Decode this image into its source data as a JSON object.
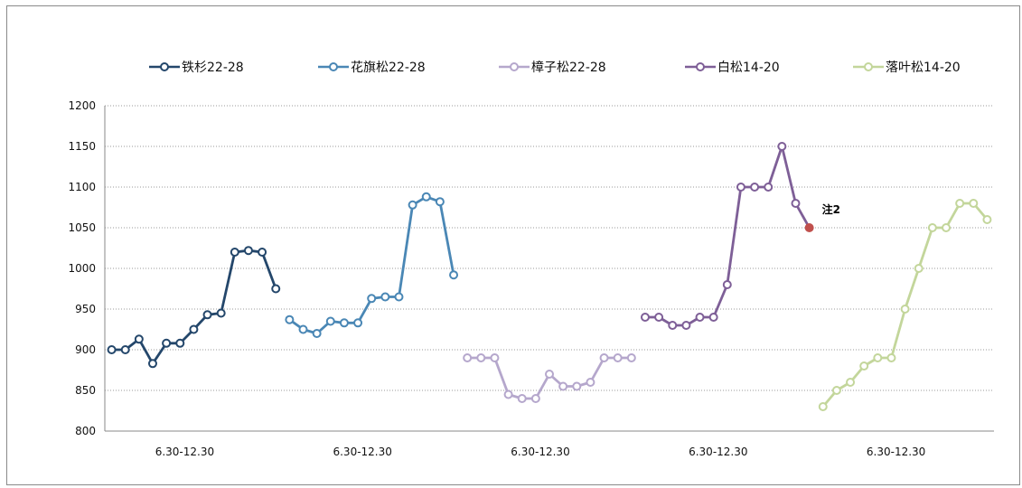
{
  "chart_data": {
    "type": "line",
    "ylim": [
      800,
      1200
    ],
    "yticks": [
      800,
      850,
      900,
      950,
      1000,
      1050,
      1100,
      1150,
      1200
    ],
    "grid": "horizontal dotted",
    "legend_position": "top",
    "series": [
      {
        "name": "铁杉22-28",
        "color": "#24476b",
        "category_label": "6.30-12.30",
        "values": [
          900,
          900,
          913,
          883,
          908,
          908,
          925,
          943,
          945,
          1020,
          1022,
          1020,
          975
        ]
      },
      {
        "name": "花旗松22-28",
        "color": "#4a87b5",
        "category_label": "6.30-12.30",
        "values": [
          937,
          925,
          920,
          935,
          933,
          933,
          963,
          965,
          965,
          1078,
          1088,
          1082,
          992
        ]
      },
      {
        "name": "樟子松22-28",
        "color": "#b5a7cc",
        "category_label": "6.30-12.30",
        "values": [
          890,
          890,
          890,
          845,
          840,
          840,
          870,
          855,
          855,
          860,
          890,
          890,
          890
        ]
      },
      {
        "name": "白松14-20",
        "color": "#7e5f97",
        "category_label": "6.30-12.30",
        "values": [
          940,
          940,
          930,
          930,
          940,
          940,
          980,
          1100,
          1100,
          1100,
          1150,
          1080,
          1050
        ],
        "highlight_last": {
          "color": "#c0504d",
          "annotation": "注2"
        }
      },
      {
        "name": "落叶松14-20",
        "color": "#c3d69b",
        "category_label": "6.30-12.30",
        "values": [
          830,
          850,
          860,
          880,
          890,
          890,
          950,
          1000,
          1050,
          1050,
          1080,
          1080,
          1060
        ]
      }
    ]
  }
}
